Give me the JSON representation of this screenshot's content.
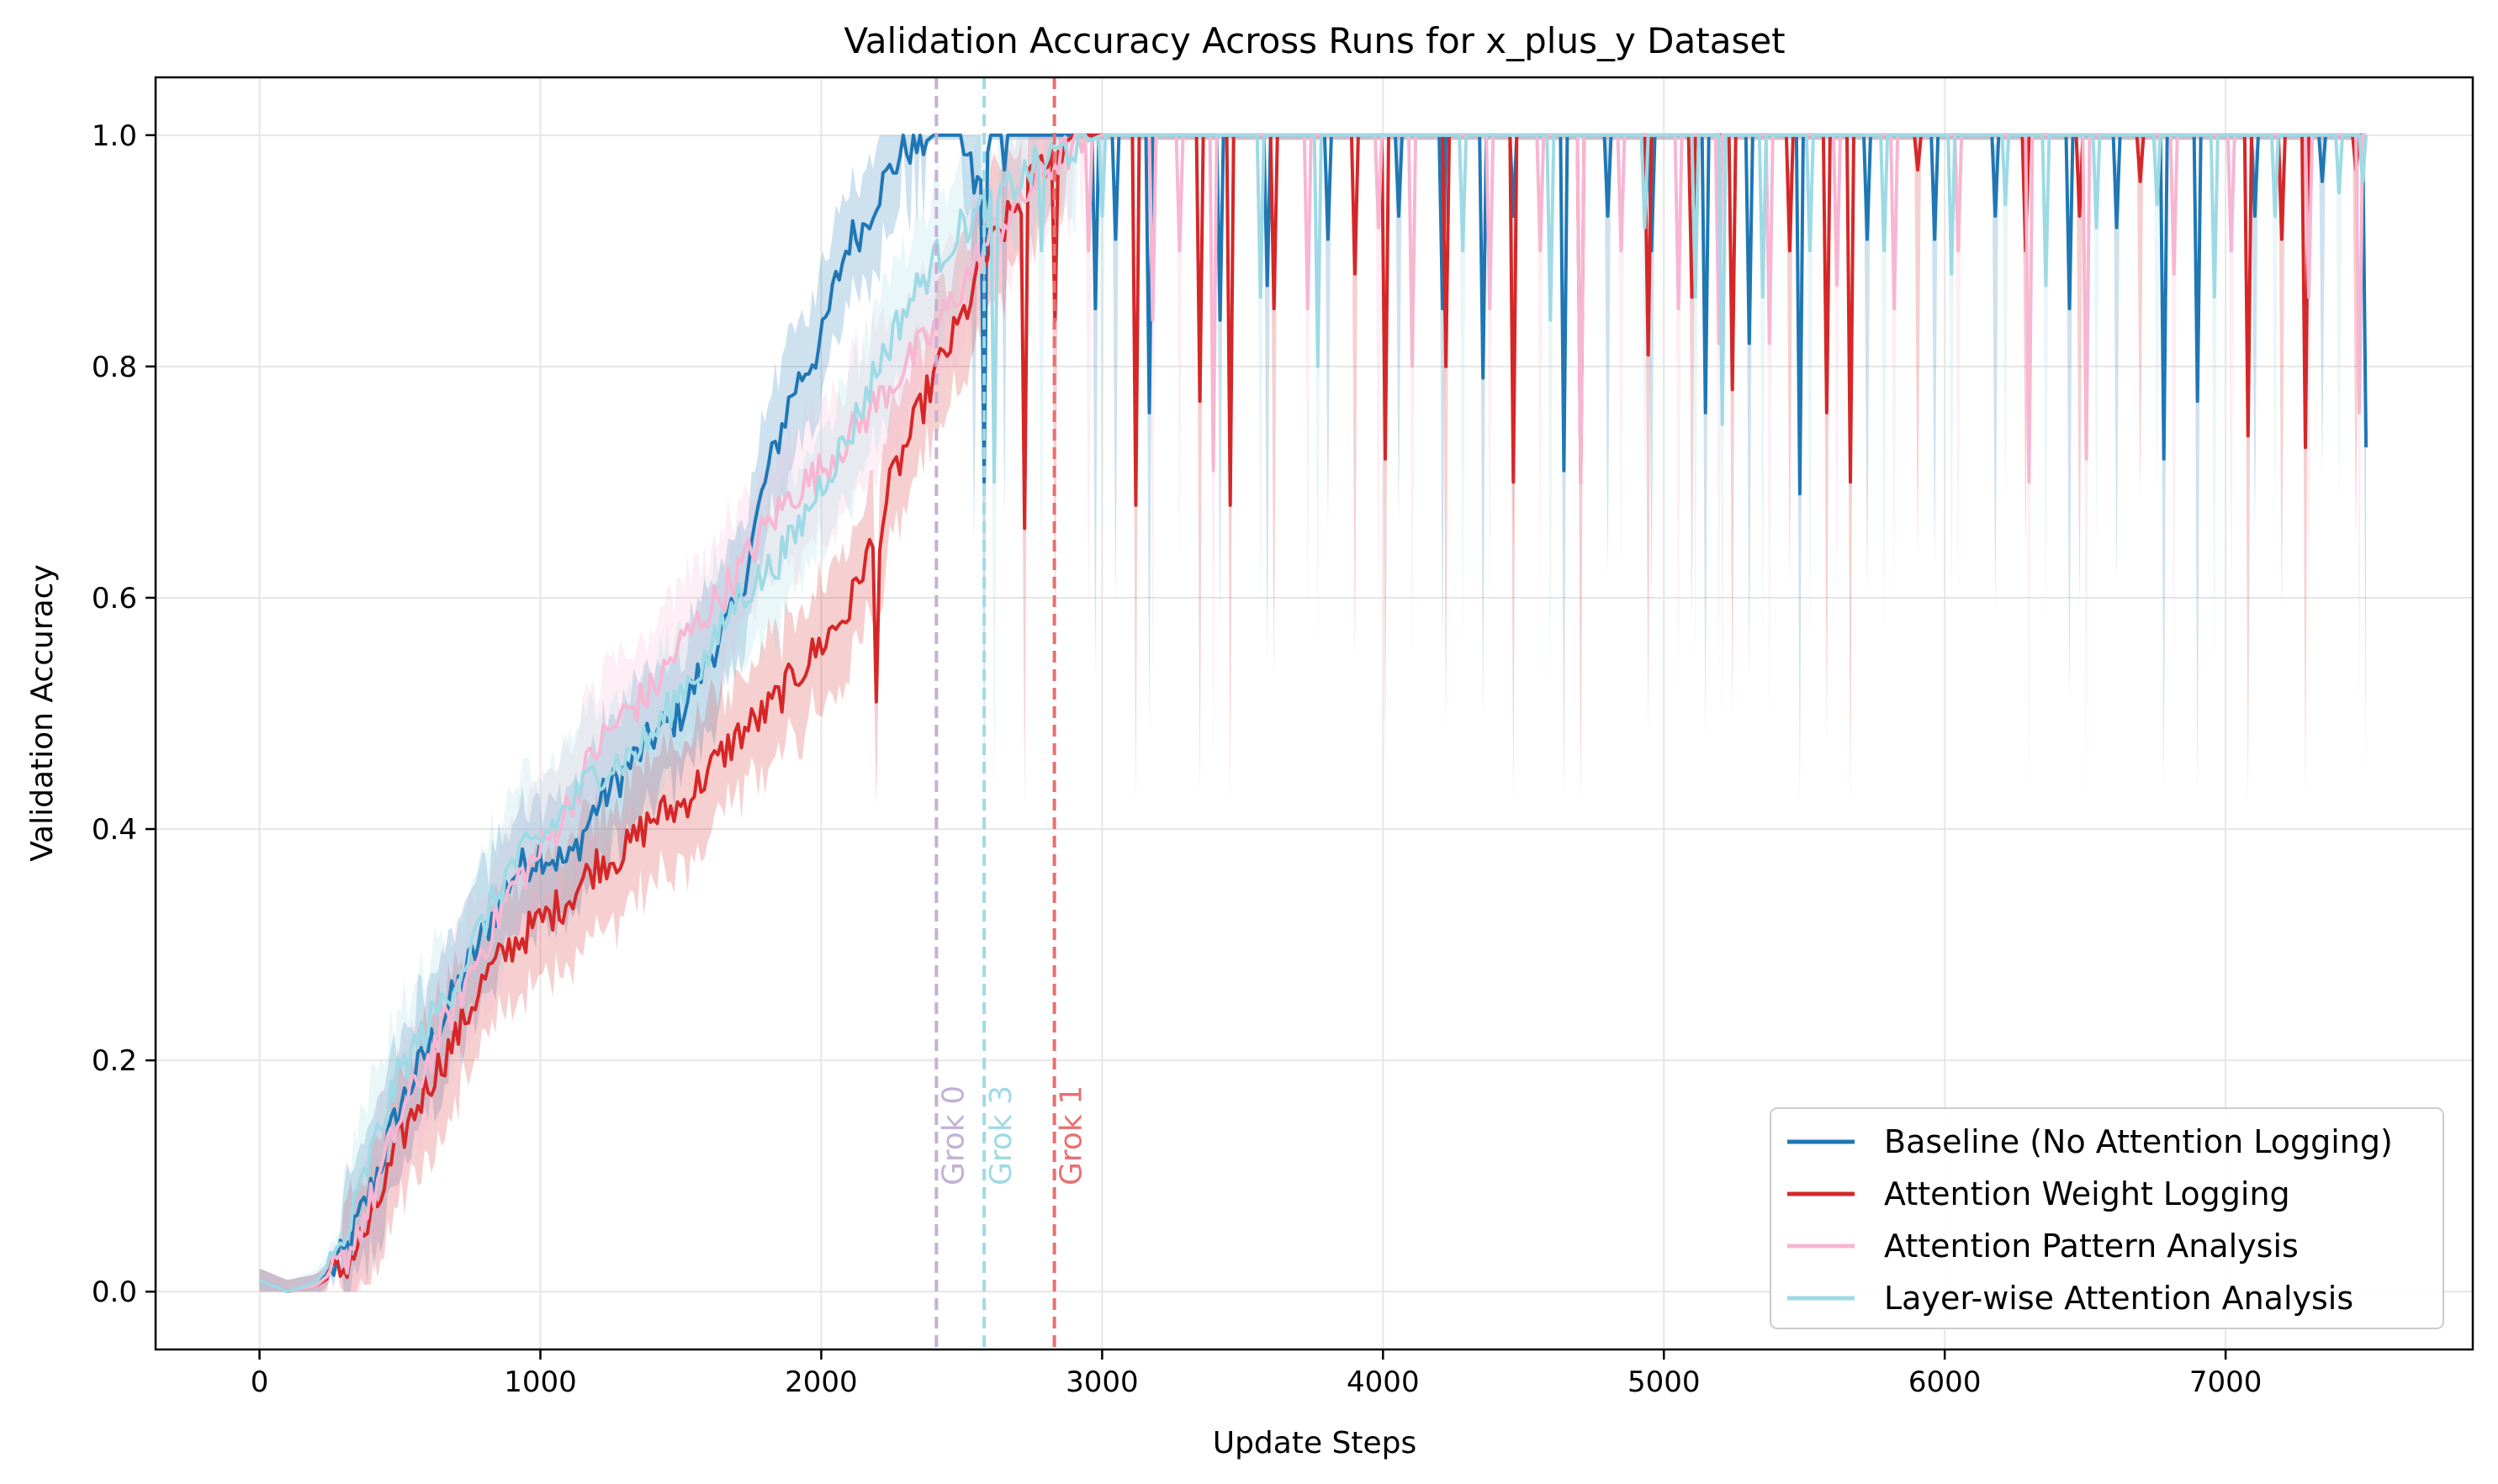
{
  "chart_data": {
    "type": "line",
    "title": "Validation Accuracy Across Runs for x_plus_y Dataset",
    "xlabel": "Update Steps",
    "ylabel": "Validation Accuracy",
    "xlim": [
      -370,
      7880
    ],
    "ylim": [
      -0.05,
      1.05
    ],
    "xticks": [
      0,
      1000,
      2000,
      3000,
      4000,
      5000,
      6000,
      7000
    ],
    "yticks": [
      0.0,
      0.2,
      0.4,
      0.6,
      0.8,
      1.0
    ],
    "xtick_labels": [
      "0",
      "1000",
      "2000",
      "3000",
      "4000",
      "5000",
      "6000",
      "7000"
    ],
    "ytick_labels": [
      "0.0",
      "0.2",
      "0.4",
      "0.6",
      "0.8",
      "1.0"
    ],
    "grid": true,
    "legend_position": "lower-right",
    "series": [
      {
        "name": "Baseline (No Attention Logging)",
        "color": "#1f77b4",
        "x": [
          0,
          100,
          200,
          300,
          400,
          500,
          600,
          700,
          800,
          900,
          1000,
          1100,
          1200,
          1300,
          1400,
          1500,
          1600,
          1700,
          1800,
          1900,
          2000,
          2050,
          2100,
          2150,
          2200,
          2250,
          2300,
          2350,
          2400,
          2500,
          2550,
          2600,
          2650,
          2700,
          2800,
          2900,
          3000,
          7500
        ],
        "y": [
          0.01,
          0.0,
          0.005,
          0.03,
          0.09,
          0.16,
          0.21,
          0.26,
          0.31,
          0.36,
          0.38,
          0.37,
          0.42,
          0.45,
          0.48,
          0.5,
          0.55,
          0.59,
          0.7,
          0.78,
          0.82,
          0.87,
          0.91,
          0.92,
          0.95,
          0.97,
          0.99,
          0.99,
          1.0,
          1.0,
          0.95,
          1.0,
          1.0,
          1.0,
          1.0,
          1.0,
          1.0,
          1.0
        ],
        "dips": [
          [
            2540,
            0.95
          ],
          [
            2580,
            0.7
          ],
          [
            2650,
            0.97
          ],
          [
            2980,
            0.85
          ],
          [
            3050,
            0.91
          ],
          [
            3170,
            0.76
          ],
          [
            3420,
            0.84
          ],
          [
            3590,
            0.87
          ],
          [
            3810,
            0.91
          ],
          [
            4060,
            0.93
          ],
          [
            4210,
            0.85
          ],
          [
            4360,
            0.79
          ],
          [
            4460,
            0.93
          ],
          [
            4650,
            0.71
          ],
          [
            4800,
            0.93
          ],
          [
            4960,
            0.9
          ],
          [
            5150,
            0.76
          ],
          [
            5300,
            0.82
          ],
          [
            5480,
            0.69
          ],
          [
            5720,
            0.91
          ],
          [
            5960,
            0.91
          ],
          [
            6180,
            0.93
          ],
          [
            6450,
            0.85
          ],
          [
            6610,
            0.92
          ],
          [
            6780,
            0.72
          ],
          [
            6900,
            0.77
          ],
          [
            7100,
            0.93
          ],
          [
            7350,
            0.96
          ],
          [
            7500,
            0.73
          ]
        ]
      },
      {
        "name": "Attention Weight Logging",
        "color": "#d62728",
        "x": [
          0,
          100,
          200,
          300,
          400,
          500,
          600,
          700,
          800,
          900,
          1000,
          1100,
          1200,
          1300,
          1400,
          1500,
          1600,
          1700,
          1800,
          1900,
          2000,
          2100,
          2150,
          2200,
          2250,
          2300,
          2400,
          2500,
          2600,
          2700,
          2800,
          2850,
          2900,
          3000,
          7500
        ],
        "y": [
          0.01,
          0.0,
          0.005,
          0.02,
          0.06,
          0.13,
          0.18,
          0.22,
          0.27,
          0.3,
          0.32,
          0.34,
          0.37,
          0.38,
          0.41,
          0.42,
          0.45,
          0.48,
          0.5,
          0.53,
          0.56,
          0.59,
          0.63,
          0.65,
          0.7,
          0.73,
          0.79,
          0.84,
          0.9,
          0.94,
          0.98,
          0.99,
          1.0,
          1.0,
          1.0
        ],
        "dips": [
          [
            2200,
            0.51
          ],
          [
            2720,
            0.66
          ],
          [
            2830,
            0.84
          ],
          [
            3120,
            0.68
          ],
          [
            3350,
            0.77
          ],
          [
            3460,
            0.68
          ],
          [
            3610,
            0.85
          ],
          [
            3900,
            0.88
          ],
          [
            4010,
            0.72
          ],
          [
            4230,
            0.8
          ],
          [
            4460,
            0.7
          ],
          [
            4700,
            0.7
          ],
          [
            4940,
            0.81
          ],
          [
            5100,
            0.86
          ],
          [
            5250,
            0.78
          ],
          [
            5450,
            0.9
          ],
          [
            5580,
            0.76
          ],
          [
            5660,
            0.7
          ],
          [
            5900,
            0.97
          ],
          [
            6290,
            0.9
          ],
          [
            6480,
            0.93
          ],
          [
            6700,
            0.96
          ],
          [
            7080,
            0.74
          ],
          [
            7200,
            0.91
          ],
          [
            7280,
            0.73
          ],
          [
            7460,
            0.97
          ]
        ]
      },
      {
        "name": "Attention Pattern Analysis",
        "color": "#f7b6d2",
        "x": [
          0,
          100,
          200,
          300,
          400,
          500,
          600,
          700,
          800,
          900,
          1000,
          1100,
          1200,
          1300,
          1400,
          1500,
          1600,
          1700,
          1800,
          1900,
          2000,
          2100,
          2200,
          2300,
          2400,
          2500,
          2600,
          2700,
          2800,
          2900,
          3000,
          7500
        ],
        "y": [
          0.01,
          0.0,
          0.005,
          0.025,
          0.08,
          0.15,
          0.2,
          0.25,
          0.3,
          0.35,
          0.38,
          0.42,
          0.47,
          0.5,
          0.52,
          0.56,
          0.59,
          0.62,
          0.66,
          0.69,
          0.71,
          0.74,
          0.77,
          0.8,
          0.83,
          0.87,
          0.91,
          0.94,
          0.97,
          0.99,
          1.0,
          1.0
        ],
        "dips": [
          [
            2950,
            0.9
          ],
          [
            3180,
            0.84
          ],
          [
            3280,
            0.9
          ],
          [
            3400,
            0.71
          ],
          [
            3730,
            0.85
          ],
          [
            3980,
            0.92
          ],
          [
            4100,
            0.8
          ],
          [
            4380,
            0.85
          ],
          [
            4560,
            0.9
          ],
          [
            4700,
            0.7
          ],
          [
            4850,
            0.9
          ],
          [
            5050,
            0.85
          ],
          [
            5200,
            0.82
          ],
          [
            5380,
            0.82
          ],
          [
            5620,
            0.87
          ],
          [
            5820,
            0.85
          ],
          [
            6050,
            0.9
          ],
          [
            6300,
            0.7
          ],
          [
            6500,
            0.72
          ],
          [
            6820,
            0.88
          ],
          [
            7020,
            0.9
          ],
          [
            7300,
            0.86
          ],
          [
            7480,
            0.76
          ]
        ]
      },
      {
        "name": "Layer-wise Attention Analysis",
        "color": "#9edae5",
        "x": [
          0,
          100,
          200,
          300,
          400,
          500,
          600,
          700,
          800,
          900,
          1000,
          1100,
          1200,
          1300,
          1400,
          1500,
          1600,
          1700,
          1800,
          1900,
          2000,
          2100,
          2200,
          2300,
          2400,
          2500,
          2600,
          2700,
          2800,
          2900,
          3000,
          7500
        ],
        "y": [
          0.01,
          0.0,
          0.008,
          0.04,
          0.12,
          0.19,
          0.23,
          0.27,
          0.32,
          0.37,
          0.39,
          0.42,
          0.45,
          0.46,
          0.48,
          0.52,
          0.55,
          0.6,
          0.62,
          0.65,
          0.7,
          0.74,
          0.8,
          0.85,
          0.89,
          0.92,
          0.94,
          0.96,
          0.98,
          0.99,
          1.0,
          1.0
        ],
        "dips": [
          [
            2620,
            0.7
          ],
          [
            2780,
            0.9
          ],
          [
            3000,
            0.93
          ],
          [
            3560,
            0.86
          ],
          [
            3770,
            0.8
          ],
          [
            4280,
            0.9
          ],
          [
            4600,
            0.84
          ],
          [
            4930,
            0.92
          ],
          [
            5110,
            0.86
          ],
          [
            5210,
            0.75
          ],
          [
            5350,
            0.86
          ],
          [
            5520,
            0.9
          ],
          [
            5780,
            0.9
          ],
          [
            6020,
            0.88
          ],
          [
            6220,
            0.94
          ],
          [
            6360,
            0.87
          ],
          [
            6540,
            0.92
          ],
          [
            6760,
            0.94
          ],
          [
            6960,
            0.86
          ],
          [
            7180,
            0.93
          ],
          [
            7400,
            0.95
          ],
          [
            7490,
            0.96
          ]
        ]
      }
    ],
    "vlines": [
      {
        "x": 2410,
        "label": "Grok 0",
        "color": "#c5b0d5"
      },
      {
        "x": 2580,
        "label": "Grok 3",
        "color": "#9edae5"
      },
      {
        "x": 2830,
        "label": "Grok 1",
        "color": "#e8706f"
      }
    ]
  }
}
